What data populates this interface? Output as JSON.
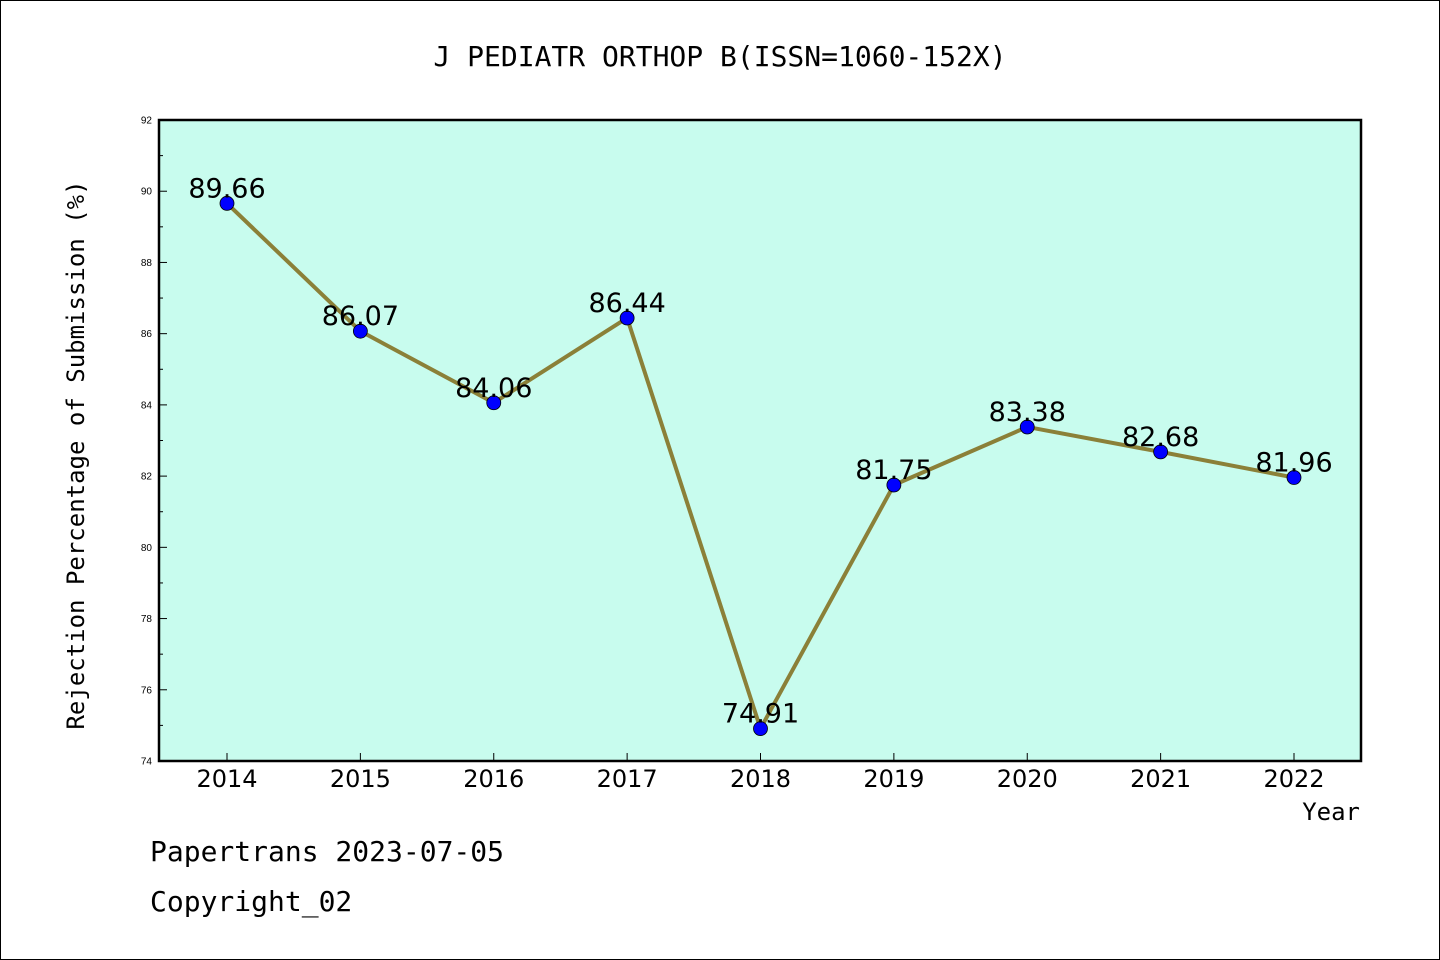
{
  "chart_data": {
    "type": "line",
    "title": "J PEDIATR ORTHOP B(ISSN=1060-152X)",
    "xlabel": "Year",
    "ylabel": "Rejection Percentage of Submission (%)",
    "x": [
      "2014",
      "2015",
      "2016",
      "2017",
      "2018",
      "2019",
      "2020",
      "2021",
      "2022"
    ],
    "series": [
      {
        "values": [
          89.66,
          86.07,
          84.06,
          86.44,
          74.91,
          81.75,
          83.38,
          82.68,
          81.96
        ],
        "labels": [
          "89.66",
          "86.07",
          "84.06",
          "86.44",
          "74.91",
          "81.75",
          "83.38",
          "82.68",
          "81.96"
        ]
      }
    ],
    "ylim": [
      74,
      92
    ],
    "yticks": [
      "74",
      "76",
      "78",
      "80",
      "82",
      "84",
      "86",
      "88",
      "90",
      "92"
    ],
    "grid": false,
    "colors": {
      "plot_background": "#c8fcee",
      "line": "#8b8038",
      "marker": "#0000ff"
    }
  },
  "footer": {
    "line1": "Papertrans 2023-07-05",
    "line2": "Copyright_02"
  }
}
